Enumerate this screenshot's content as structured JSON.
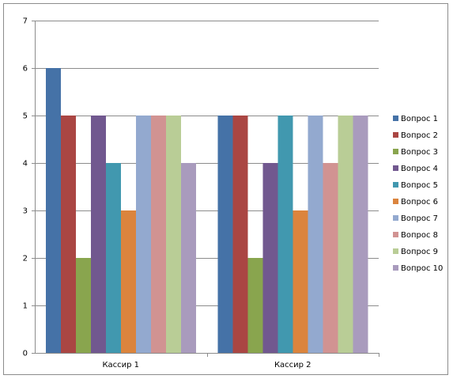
{
  "chart_data": {
    "type": "bar",
    "categories": [
      "Кассир 1",
      "Кассир 2"
    ],
    "series": [
      {
        "name": "Вопрос 1",
        "color": "#4572A7",
        "values": [
          6,
          5
        ]
      },
      {
        "name": "Вопрос 2",
        "color": "#AA4643",
        "values": [
          5,
          5
        ]
      },
      {
        "name": "Вопрос 3",
        "color": "#89A54E",
        "values": [
          2,
          2
        ]
      },
      {
        "name": "Вопрос 4",
        "color": "#71588F",
        "values": [
          5,
          4
        ]
      },
      {
        "name": "Вопрос 5",
        "color": "#4198AF",
        "values": [
          4,
          5
        ]
      },
      {
        "name": "Вопрос 6",
        "color": "#DB843D",
        "values": [
          3,
          3
        ]
      },
      {
        "name": "Вопрос 7",
        "color": "#93A9CF",
        "values": [
          5,
          5
        ]
      },
      {
        "name": "Вопрос 8",
        "color": "#D19392",
        "values": [
          5,
          4
        ]
      },
      {
        "name": "Вопрос 9",
        "color": "#B9CD96",
        "values": [
          5,
          5
        ]
      },
      {
        "name": "Вопрос 10",
        "color": "#A99BBD",
        "values": [
          4,
          5
        ]
      }
    ],
    "yticks": [
      "0",
      "1",
      "2",
      "3",
      "4",
      "5",
      "6",
      "7"
    ],
    "ylim": [
      0,
      7
    ],
    "grid": true,
    "legend": "right",
    "title": "",
    "xlabel": "",
    "ylabel": ""
  }
}
